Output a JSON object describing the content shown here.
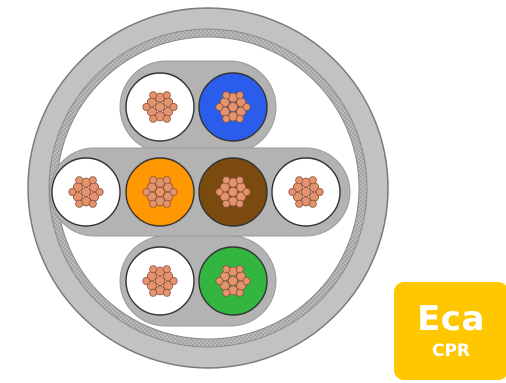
{
  "cable": {
    "jacket_color": "#c2c2c2",
    "shield_color": "#a9a9a9",
    "filler_color": "#ffffff",
    "pair_shield_color": "#b3b3b3",
    "conductor_color": "#e5936c",
    "conductor_stroke": "#8b5340",
    "insulation_stroke": "#333333",
    "pairs": [
      {
        "colors": [
          "#ffffff",
          "#2a5dec"
        ]
      },
      {
        "colors": [
          "#ffffff",
          "#ff9700"
        ]
      },
      {
        "colors": [
          "#7a4a0e",
          "#ffffff"
        ]
      },
      {
        "colors": [
          "#ffffff",
          "#33b63f"
        ]
      }
    ]
  },
  "badge": {
    "title": "Eca",
    "subtitle": "CPR",
    "color": "#ffc700"
  }
}
